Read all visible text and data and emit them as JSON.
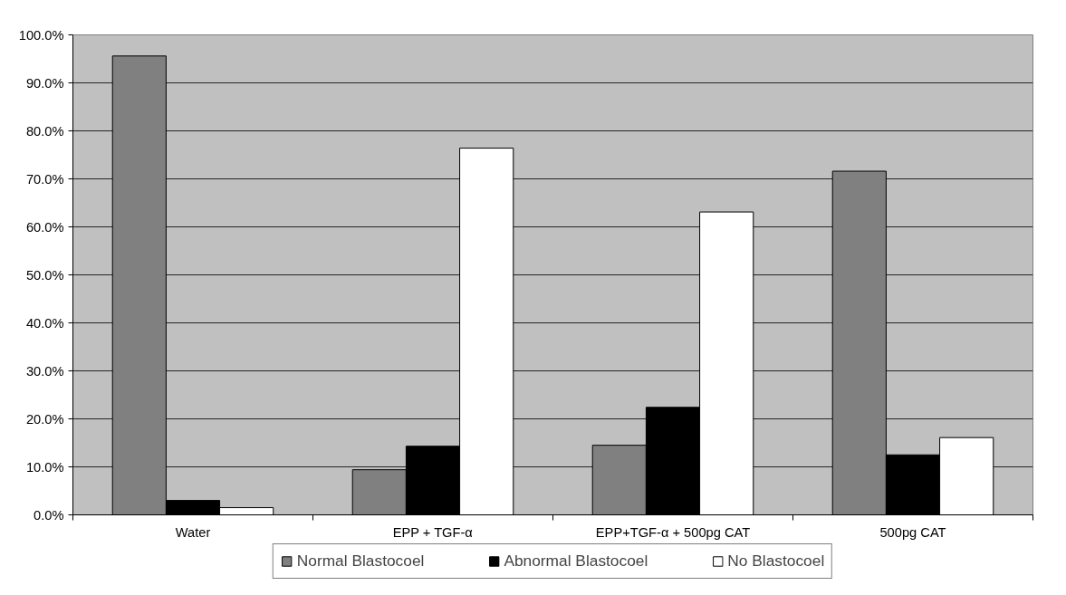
{
  "chart_data": {
    "type": "bar",
    "categories": [
      "Water",
      "EPP + TGF-α",
      "EPP+TGF-α + 500pg CAT",
      "500pg CAT"
    ],
    "series": [
      {
        "name": "Normal Blastocoel",
        "color": "#808080",
        "values": [
          95.6,
          9.4,
          14.5,
          71.6
        ]
      },
      {
        "name": "Abnormal Blastocoel",
        "color": "#000000",
        "values": [
          3.0,
          14.3,
          22.4,
          12.5
        ]
      },
      {
        "name": "No Blastocoel",
        "color": "#ffffff",
        "values": [
          1.5,
          76.4,
          63.1,
          16.1
        ]
      }
    ],
    "ylim": [
      0,
      100
    ],
    "yticks": [
      {
        "value": 0,
        "label": "0.0%"
      },
      {
        "value": 10,
        "label": "10.0%"
      },
      {
        "value": 20,
        "label": "20.0%"
      },
      {
        "value": 30,
        "label": "30.0%"
      },
      {
        "value": 40,
        "label": "40.0%"
      },
      {
        "value": 50,
        "label": "50.0%"
      },
      {
        "value": 60,
        "label": "60.0%"
      },
      {
        "value": 70,
        "label": "70.0%"
      },
      {
        "value": 80,
        "label": "80.0%"
      },
      {
        "value": 90,
        "label": "90.0%"
      },
      {
        "value": 100,
        "label": "100.0%"
      }
    ],
    "grid": "y",
    "legend": "bottom"
  }
}
